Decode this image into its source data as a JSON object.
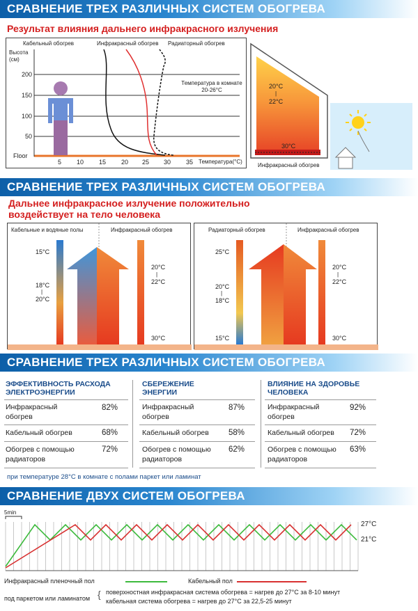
{
  "section1": {
    "title": "СРАВНЕНИЕ ТРЕХ РАЗЛИЧНЫХ СИСТЕМ ОБОГРЕВА",
    "subtitle": "Результат влияния дальнего инфракрасного излучения",
    "curves": {
      "cable": "Кабельный обогрев",
      "infrared": "Инфракрасный обогрев",
      "radiator": "Радиаторный обогрев"
    },
    "y_label": "Высота (см)",
    "y_ticks": [
      "200",
      "150",
      "100",
      "50",
      "Floor"
    ],
    "x_ticks": [
      "5",
      "10",
      "15",
      "20",
      "25",
      "30",
      "35"
    ],
    "x_label": "Температура(°C)",
    "room_note": "Температура в комнате 20-26°C",
    "room_temp_top": "20°C",
    "room_temp_sep": "|",
    "room_temp_mid": "22°C",
    "room_temp_floor": "30°C",
    "room_caption": "Инфракрасный обогрев"
  },
  "section2": {
    "title": "СРАВНЕНИЕ ТРЕХ РАЗЛИЧНЫХ СИСТЕМ ОБОГРЕВА",
    "subtitle_line1": "Дальнее инфракрасное излучение положительно",
    "subtitle_line2": "воздействует на тело человека",
    "left_panel": {
      "label_a": "Кабельные и водяные полы",
      "label_b": "Инфракрасный обогрев",
      "t1": "15°C",
      "t2": "18°C",
      "t2s": "|",
      "t3": "20°C",
      "t4": "20°C",
      "t4s": "|",
      "t5": "22°C",
      "t6": "30°C"
    },
    "right_panel": {
      "label_a": "Радиаторный обогрев",
      "label_b": "Инфракрасный обогрев",
      "t1": "25°C",
      "t2": "20°C",
      "t2s": "|",
      "t3": "18°C",
      "t4": "15°C",
      "t5": "20°C",
      "t5s": "|",
      "t6": "22°C",
      "t7": "30°C"
    }
  },
  "section3": {
    "title": "СРАВНЕНИЕ ТРЕХ РАЗЛИЧНЫХ СИСТЕМ ОБОГРЕВА",
    "columns": [
      {
        "header_line1": "ЭФФЕКТИВНОСТЬ РАСХОДА",
        "header_line2": "ЭЛЕКТРОЭНЕРГИИ",
        "rows": [
          {
            "l1": "Инфракрасный",
            "l2": "обогрев",
            "value": "82%"
          },
          {
            "l1": "Кабельный обогрев",
            "l2": "",
            "value": "68%"
          },
          {
            "l1": "Обогрев с помощью",
            "l2": "радиаторов",
            "value": "72%"
          }
        ]
      },
      {
        "header_line1": "СБЕРЕЖЕНИЕ",
        "header_line2": "ЭНЕРГИИ",
        "rows": [
          {
            "l1": "Инфракрасный",
            "l2": "обогрев",
            "value": "87%"
          },
          {
            "l1": "Кабельный обогрев",
            "l2": "",
            "value": "58%"
          },
          {
            "l1": "Обогрев с помощью",
            "l2": "радиаторов",
            "value": "62%"
          }
        ]
      },
      {
        "header_line1": "ВЛИЯНИЕ НА ЗДОРОВЬЕ",
        "header_line2": "ЧЕЛОВЕКА",
        "rows": [
          {
            "l1": "Инфракрасный",
            "l2": "обогрев",
            "value": "92%"
          },
          {
            "l1": "Кабельный обогрев",
            "l2": "",
            "value": "72%"
          },
          {
            "l1": "Обогрев с помощью",
            "l2": "радиаторов",
            "value": "63%"
          }
        ]
      }
    ],
    "footnote": "при температуре 28°C в комнате с полами паркет или ламинат"
  },
  "section4": {
    "title": "СРАВНЕНИЕ ДВУХ СИСТЕМ ОБОГРЕВА",
    "interval_label": "5min",
    "level_high": "27°C",
    "level_low": "21°C",
    "legend_infrared_l1": "Инфракрасный пленочный пол",
    "legend_infrared_l2": "под паркетом или ламинатом",
    "legend_cable": "Кабельный пол",
    "note1": "поверхностная инфракрасная система обогрева = нагрев до 27°C за 8-10 минут",
    "note2": "кабельная система обогрева = нагрев до 27°C за 22,5-25 минут",
    "colors": {
      "infrared": "#3cba3c",
      "cable": "#d83030"
    }
  }
}
